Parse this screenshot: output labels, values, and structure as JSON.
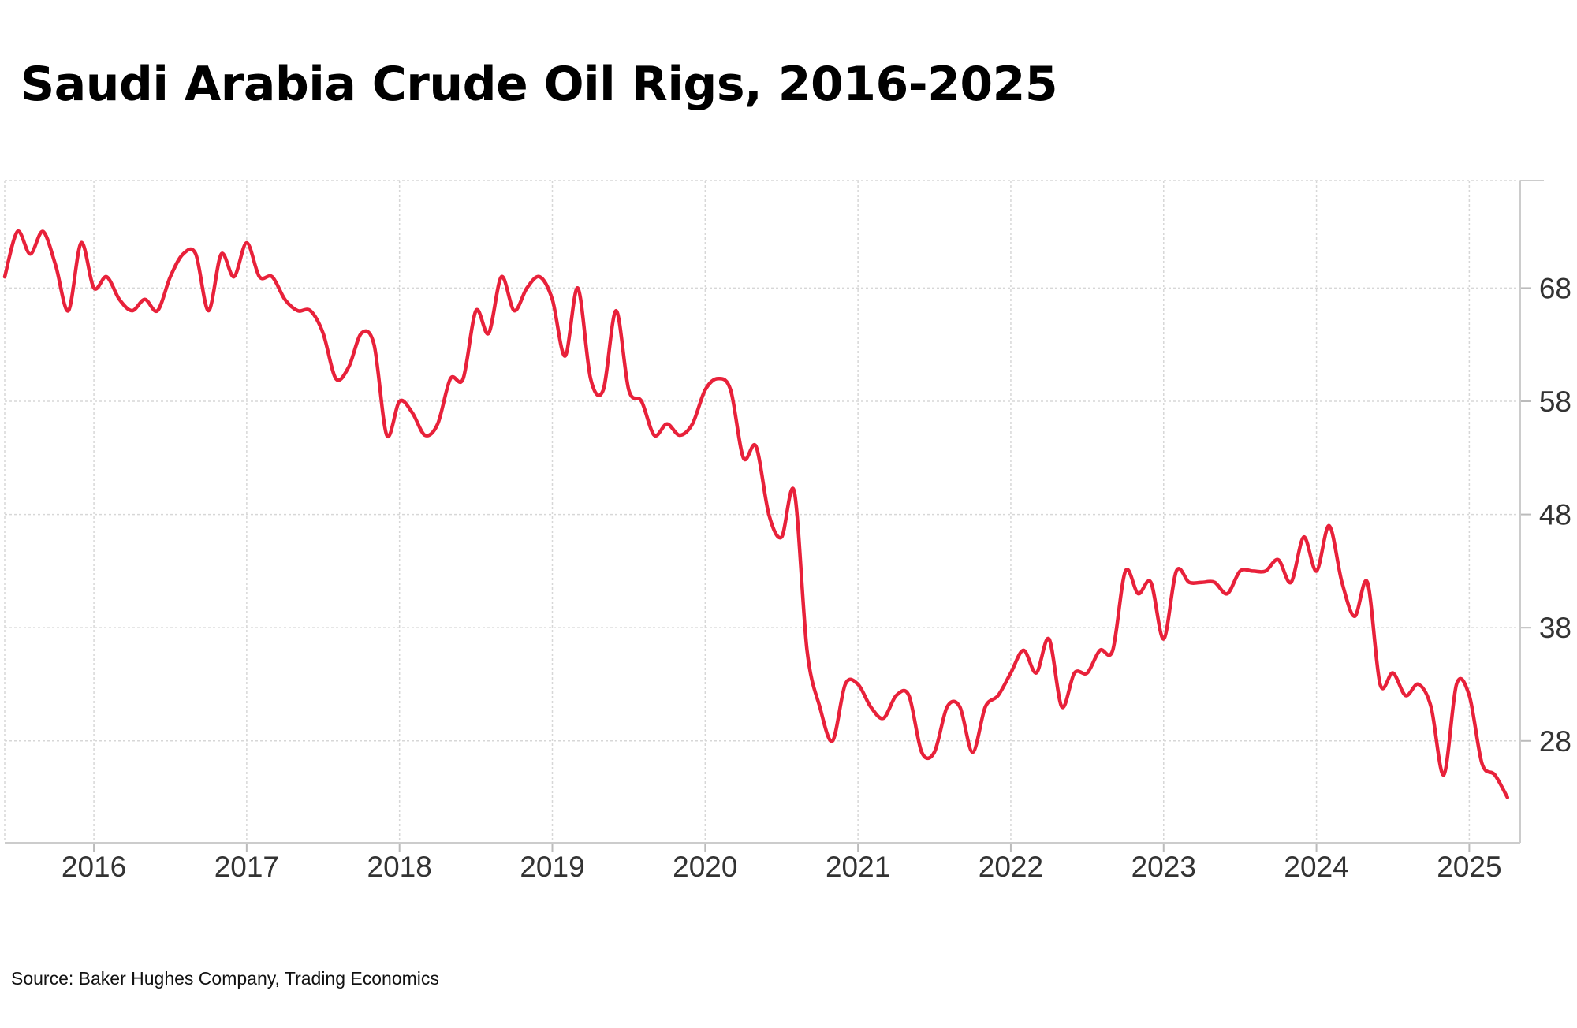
{
  "chart_data": {
    "type": "line",
    "title": "Saudi Arabia Crude Oil Rigs, 2016-2025",
    "xlabel": "",
    "ylabel": "",
    "x_ticks": [
      "2016",
      "2017",
      "2018",
      "2019",
      "2020",
      "2021",
      "2022",
      "2023",
      "2024",
      "2025"
    ],
    "y_ticks": [
      28,
      38,
      48,
      58,
      68
    ],
    "xlim": [
      "2015-06",
      "2025-05"
    ],
    "ylim": [
      19,
      77.5
    ],
    "y_axis_position": "right",
    "grid": true,
    "legend": "none",
    "series": [
      {
        "color": "#e8213a",
        "points": [
          [
            "2015-06",
            69
          ],
          [
            "2015-07",
            73
          ],
          [
            "2015-08",
            71
          ],
          [
            "2015-09",
            73
          ],
          [
            "2015-10",
            70
          ],
          [
            "2015-11",
            66
          ],
          [
            "2015-12",
            72
          ],
          [
            "2016-01",
            68
          ],
          [
            "2016-02",
            69
          ],
          [
            "2016-03",
            67
          ],
          [
            "2016-04",
            66
          ],
          [
            "2016-05",
            67
          ],
          [
            "2016-06",
            66
          ],
          [
            "2016-07",
            69
          ],
          [
            "2016-08",
            71
          ],
          [
            "2016-09",
            71
          ],
          [
            "2016-10",
            66
          ],
          [
            "2016-11",
            71
          ],
          [
            "2016-12",
            69
          ],
          [
            "2017-01",
            72
          ],
          [
            "2017-02",
            69
          ],
          [
            "2017-03",
            69
          ],
          [
            "2017-04",
            67
          ],
          [
            "2017-05",
            66
          ],
          [
            "2017-06",
            66
          ],
          [
            "2017-07",
            64
          ],
          [
            "2017-08",
            60
          ],
          [
            "2017-09",
            61
          ],
          [
            "2017-10",
            64
          ],
          [
            "2017-11",
            63
          ],
          [
            "2017-12",
            55
          ],
          [
            "2018-01",
            58
          ],
          [
            "2018-02",
            57
          ],
          [
            "2018-03",
            55
          ],
          [
            "2018-04",
            56
          ],
          [
            "2018-05",
            60
          ],
          [
            "2018-06",
            60
          ],
          [
            "2018-07",
            66
          ],
          [
            "2018-08",
            64
          ],
          [
            "2018-09",
            69
          ],
          [
            "2018-10",
            66
          ],
          [
            "2018-11",
            68
          ],
          [
            "2018-12",
            69
          ],
          [
            "2019-01",
            67
          ],
          [
            "2019-02",
            62
          ],
          [
            "2019-03",
            68
          ],
          [
            "2019-04",
            60
          ],
          [
            "2019-05",
            59
          ],
          [
            "2019-06",
            66
          ],
          [
            "2019-07",
            59
          ],
          [
            "2019-08",
            58
          ],
          [
            "2019-09",
            55
          ],
          [
            "2019-10",
            56
          ],
          [
            "2019-11",
            55
          ],
          [
            "2019-12",
            56
          ],
          [
            "2020-01",
            59
          ],
          [
            "2020-02",
            60
          ],
          [
            "2020-03",
            59
          ],
          [
            "2020-04",
            53
          ],
          [
            "2020-05",
            54
          ],
          [
            "2020-06",
            48
          ],
          [
            "2020-07",
            46
          ],
          [
            "2020-08",
            50
          ],
          [
            "2020-09",
            36
          ],
          [
            "2020-10",
            31
          ],
          [
            "2020-11",
            28
          ],
          [
            "2020-12",
            33
          ],
          [
            "2021-01",
            33
          ],
          [
            "2021-02",
            31
          ],
          [
            "2021-03",
            30
          ],
          [
            "2021-04",
            32
          ],
          [
            "2021-05",
            32
          ],
          [
            "2021-06",
            27
          ],
          [
            "2021-07",
            27
          ],
          [
            "2021-08",
            31
          ],
          [
            "2021-09",
            31
          ],
          [
            "2021-10",
            27
          ],
          [
            "2021-11",
            31
          ],
          [
            "2021-12",
            32
          ],
          [
            "2022-01",
            34
          ],
          [
            "2022-02",
            36
          ],
          [
            "2022-03",
            34
          ],
          [
            "2022-04",
            37
          ],
          [
            "2022-05",
            31
          ],
          [
            "2022-06",
            34
          ],
          [
            "2022-07",
            34
          ],
          [
            "2022-08",
            36
          ],
          [
            "2022-09",
            36
          ],
          [
            "2022-10",
            43
          ],
          [
            "2022-11",
            41
          ],
          [
            "2022-12",
            42
          ],
          [
            "2023-01",
            37
          ],
          [
            "2023-02",
            43
          ],
          [
            "2023-03",
            42
          ],
          [
            "2023-04",
            42
          ],
          [
            "2023-05",
            42
          ],
          [
            "2023-06",
            41
          ],
          [
            "2023-07",
            43
          ],
          [
            "2023-08",
            43
          ],
          [
            "2023-09",
            43
          ],
          [
            "2023-10",
            44
          ],
          [
            "2023-11",
            42
          ],
          [
            "2023-12",
            46
          ],
          [
            "2024-01",
            43
          ],
          [
            "2024-02",
            47
          ],
          [
            "2024-03",
            42
          ],
          [
            "2024-04",
            39
          ],
          [
            "2024-05",
            42
          ],
          [
            "2024-06",
            33
          ],
          [
            "2024-07",
            34
          ],
          [
            "2024-08",
            32
          ],
          [
            "2024-09",
            33
          ],
          [
            "2024-10",
            31
          ],
          [
            "2024-11",
            25
          ],
          [
            "2024-12",
            33
          ],
          [
            "2025-01",
            32
          ],
          [
            "2025-02",
            26
          ],
          [
            "2025-03",
            25
          ],
          [
            "2025-04",
            23
          ]
        ]
      }
    ]
  },
  "source": "Source: Baker Hughes Company, Trading Economics"
}
